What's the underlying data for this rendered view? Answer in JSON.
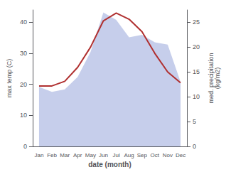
{
  "chart_data": {
    "type": "line",
    "xlabel": "date (month)",
    "ylabel": "max temp (C)",
    "y2label": "med. precipitation\n(kg/m2)",
    "categories": [
      "Jan",
      "Feb",
      "Mar",
      "Apr",
      "May",
      "Jun",
      "Jul",
      "Aug",
      "Sep",
      "Oct",
      "Nov",
      "Dec"
    ],
    "series": [
      {
        "type": "area",
        "axis": "y2",
        "color": "#bcc5e8",
        "values": [
          12.0,
          11.0,
          11.5,
          14.0,
          19.0,
          27.0,
          25.5,
          22.0,
          22.5,
          21.0,
          20.5,
          13.0
        ]
      },
      {
        "type": "line",
        "color": "#b03030",
        "values": [
          19.5,
          19.5,
          21.0,
          25.5,
          32.0,
          40.5,
          43.0,
          41.0,
          37.0,
          30.0,
          24.0,
          20.5
        ]
      }
    ],
    "ylim": [
      0,
      44
    ],
    "yticks": [
      0,
      10,
      20,
      30,
      40
    ],
    "y2lim": [
      0,
      27.5
    ],
    "y2ticks": [
      0,
      5,
      10,
      15,
      20,
      25
    ],
    "grid": false
  }
}
